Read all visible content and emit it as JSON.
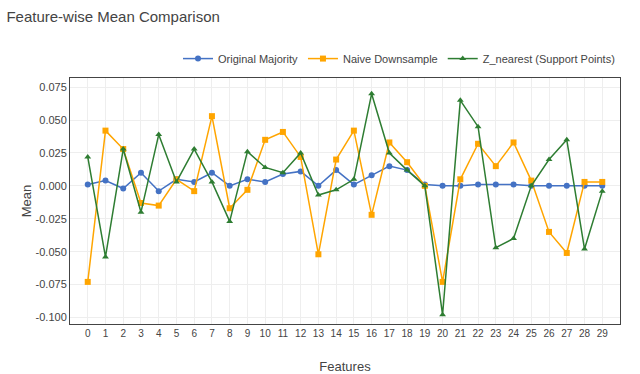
{
  "chart_data": {
    "type": "line",
    "title": "Feature-wise Mean Comparison",
    "x_label": "Features",
    "y_label": "Mean",
    "x": [
      0,
      1,
      2,
      3,
      4,
      5,
      6,
      7,
      8,
      9,
      10,
      11,
      12,
      13,
      14,
      15,
      16,
      17,
      18,
      19,
      20,
      21,
      22,
      23,
      24,
      25,
      26,
      27,
      28,
      29
    ],
    "series": [
      {
        "name": "Original Majority",
        "color": "#4472C4",
        "marker": "circle",
        "values": [
          0.001,
          0.004,
          -0.002,
          0.01,
          -0.004,
          0.005,
          0.003,
          0.01,
          0.0,
          0.005,
          0.003,
          0.009,
          0.011,
          0.0,
          0.012,
          0.001,
          0.008,
          0.015,
          0.012,
          0.001,
          0.0,
          0.0,
          0.001,
          0.001,
          0.001,
          0.0,
          0.0,
          0.0,
          0.0,
          0.0
        ]
      },
      {
        "name": "Naive Downsample",
        "color": "#FFA500",
        "marker": "square",
        "values": [
          -0.073,
          0.042,
          0.028,
          -0.013,
          -0.015,
          0.005,
          -0.004,
          0.053,
          -0.017,
          -0.003,
          0.035,
          0.041,
          0.022,
          -0.052,
          0.02,
          0.042,
          -0.022,
          0.033,
          0.018,
          0.0,
          -0.073,
          0.005,
          0.032,
          0.015,
          0.033,
          0.004,
          -0.035,
          -0.051,
          0.003,
          0.003
        ]
      },
      {
        "name": "Z_nearest (Support Points)",
        "color": "#2E7D32",
        "marker": "triangle-up",
        "values": [
          0.022,
          -0.054,
          0.028,
          -0.02,
          0.039,
          0.003,
          0.028,
          0.003,
          -0.027,
          0.026,
          0.014,
          0.01,
          0.025,
          -0.007,
          -0.003,
          0.005,
          0.07,
          0.025,
          0.012,
          0.0,
          -0.098,
          0.065,
          0.045,
          -0.047,
          -0.04,
          0.0,
          0.02,
          0.035,
          -0.048,
          -0.004
        ]
      }
    ],
    "xlim": [
      -1,
      30
    ],
    "xticks": [
      0,
      1,
      2,
      3,
      4,
      5,
      6,
      7,
      8,
      9,
      10,
      11,
      12,
      13,
      14,
      15,
      16,
      17,
      18,
      19,
      20,
      21,
      22,
      23,
      24,
      25,
      26,
      27,
      28,
      29
    ],
    "ylim": [
      -0.105,
      0.082
    ],
    "yticks": [
      {
        "value": -0.1,
        "label": "-0.100"
      },
      -0.075,
      {
        "value": -0.05,
        "label": "-0.050"
      },
      -0.025,
      {
        "value": 0,
        "label": "0.000"
      },
      0.025,
      {
        "value": 0.05,
        "label": "0.050"
      },
      0.075
    ],
    "grid": true,
    "legend": "upper right"
  }
}
